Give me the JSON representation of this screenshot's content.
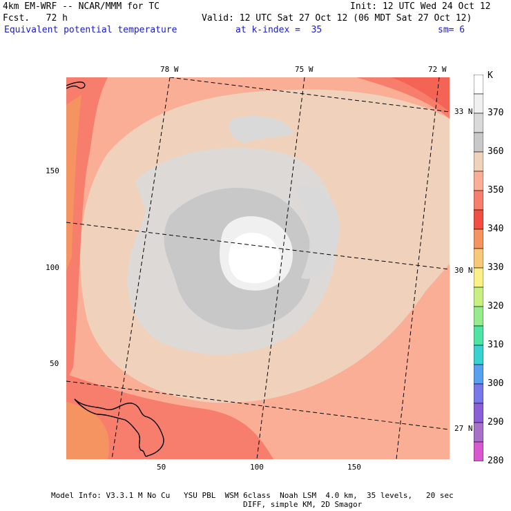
{
  "header": {
    "model_line": "4km EM-WRF -- NCAR/MMM for TC",
    "init_line": "Init: 12 UTC Wed 24 Oct 12",
    "forecast_line": "Fcst.   72 h",
    "valid_line": "Valid: 12 UTC Sat 27 Oct 12 (06 MDT Sat 27 Oct 12)",
    "field_name": "Equivalent potential temperature",
    "level": "at k-index =  35",
    "smoothing": "sm= 6"
  },
  "map": {
    "lon_labels": [
      "78 W",
      "75 W",
      "72 W"
    ],
    "lat_labels": [
      "33 N",
      "30 N",
      "27 N"
    ],
    "y_ticks": [
      "150",
      "100",
      "50"
    ],
    "x_ticks": [
      "50",
      "100",
      "150"
    ]
  },
  "colorbar": {
    "unit": "K",
    "labels": [
      "370",
      "360",
      "350",
      "340",
      "330",
      "320",
      "310",
      "300",
      "290",
      "280"
    ],
    "colors": [
      "#ffffff",
      "#f0f0f0",
      "#d9d9d9",
      "#c8c8c8",
      "#f0d2bc",
      "#f9ae95",
      "#f77e6c",
      "#f24e43",
      "#f59460",
      "#f8c878",
      "#fbf088",
      "#c8f080",
      "#96ec8c",
      "#4ee4a4",
      "#3ad2d0",
      "#58a0f2",
      "#7878e8",
      "#8a60d8",
      "#a870c8",
      "#d858d0"
    ]
  },
  "footer": {
    "line1": "Model Info: V3.3.1 M No Cu   YSU PBL  WSM 6class  Noah LSM  4.0 km,  35 levels,   20 sec",
    "line2": "DIFF, simple KM, 2D Smagor"
  }
}
